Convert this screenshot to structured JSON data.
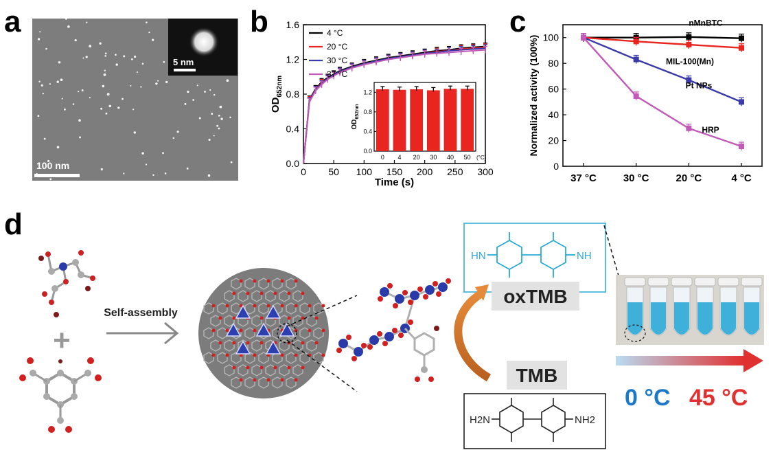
{
  "panels": {
    "a": "a",
    "b": "b",
    "c": "c",
    "d": "d"
  },
  "panel_a": {
    "scale_main": "100 nm",
    "scale_inset": "5 nm"
  },
  "chart_data": [
    {
      "type": "line",
      "panel": "b",
      "xlabel": "Time (s)",
      "ylabel": "OD",
      "ylabel_sub": "652nm",
      "xlim": [
        0,
        300
      ],
      "ylim": [
        0,
        1.6
      ],
      "xticks": [
        0,
        50,
        100,
        150,
        200,
        250,
        300
      ],
      "yticks": [
        0.0,
        0.4,
        0.8,
        1.2,
        1.6
      ],
      "legend_position": "top-left",
      "x": [
        0,
        10,
        20,
        30,
        40,
        50,
        60,
        80,
        100,
        120,
        140,
        160,
        180,
        200,
        220,
        240,
        260,
        280,
        300
      ],
      "series": [
        {
          "name": "4 °C",
          "color": "#000000",
          "values": [
            0,
            0.74,
            0.86,
            0.94,
            0.99,
            1.03,
            1.07,
            1.12,
            1.16,
            1.19,
            1.22,
            1.24,
            1.26,
            1.28,
            1.3,
            1.31,
            1.33,
            1.34,
            1.35
          ]
        },
        {
          "name": "20 °C",
          "color": "#e8261f",
          "values": [
            0,
            0.73,
            0.85,
            0.93,
            0.98,
            1.02,
            1.06,
            1.11,
            1.15,
            1.18,
            1.21,
            1.23,
            1.25,
            1.27,
            1.29,
            1.3,
            1.32,
            1.33,
            1.34
          ]
        },
        {
          "name": "30 °C",
          "color": "#3a3aa8",
          "values": [
            0,
            0.72,
            0.85,
            0.92,
            0.98,
            1.02,
            1.06,
            1.11,
            1.15,
            1.18,
            1.21,
            1.23,
            1.25,
            1.27,
            1.28,
            1.3,
            1.31,
            1.32,
            1.33
          ]
        },
        {
          "name": "37 °C",
          "color": "#c25ab8",
          "values": [
            0,
            0.71,
            0.84,
            0.91,
            0.97,
            1.01,
            1.05,
            1.1,
            1.14,
            1.17,
            1.2,
            1.22,
            1.24,
            1.26,
            1.27,
            1.28,
            1.29,
            1.3,
            1.31
          ]
        }
      ],
      "inset": {
        "type": "bar",
        "ylabel": "OD",
        "ylabel_sub": "652nm",
        "unit": "(°C)",
        "categories": [
          "0",
          "4",
          "20",
          "30",
          "40",
          "50"
        ],
        "values": [
          1.26,
          1.25,
          1.26,
          1.24,
          1.27,
          1.27
        ],
        "ylim": [
          0,
          1.4
        ],
        "yticks": [
          0.0,
          0.4,
          0.8,
          1.2
        ],
        "color": "#e8261f"
      }
    },
    {
      "type": "line",
      "panel": "c",
      "ylabel": "Normalized activity (100%)",
      "categories": [
        "37 °C",
        "30 °C",
        "20 °C",
        "4 °C"
      ],
      "ylim": [
        0,
        110
      ],
      "yticks": [
        0,
        20,
        40,
        60,
        80,
        100
      ],
      "series": [
        {
          "name": "nMnBTC",
          "color": "#000000",
          "values": [
            100,
            100,
            100.5,
            99.5
          ]
        },
        {
          "name": "MIL-100(Mn)",
          "color": "#e8261f",
          "values": [
            100,
            97,
            94.5,
            92
          ]
        },
        {
          "name": "Pt NPs",
          "color": "#3a3aa8",
          "values": [
            100,
            83,
            67,
            50
          ]
        },
        {
          "name": "HRP",
          "color": "#c25ab8",
          "values": [
            100,
            54.5,
            29.5,
            15.5
          ]
        }
      ]
    }
  ],
  "panel_d": {
    "self_assembly": "Self-assembly",
    "plus": "+",
    "oxtmb_label": "oxTMB",
    "tmb_label": "TMB",
    "oxtmb_left": "HN",
    "oxtmb_right": "NH",
    "tmb_left": "H2N",
    "tmb_right": "NH2",
    "temp_low": "0 °C",
    "temp_high": "45 °C",
    "colors": {
      "blue": "#1d78c8",
      "red": "#e03030",
      "orange": "#d9782a",
      "tube_blue": "#2aa9d6"
    }
  }
}
